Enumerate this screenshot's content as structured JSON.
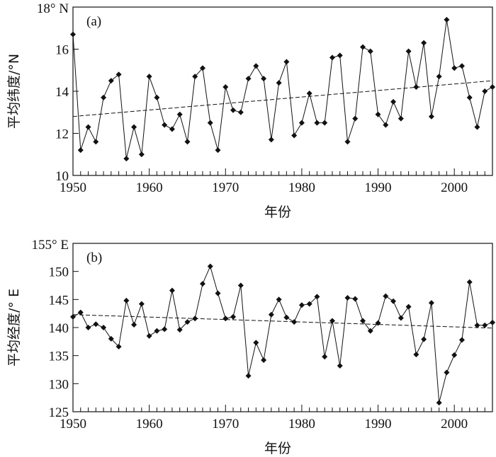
{
  "chart_data": [
    {
      "type": "line",
      "panel_label": "(a)",
      "xlabel": "年份",
      "ylabel": "平均纬度/°N",
      "top_tick_label": "18° N",
      "xlim": [
        1950,
        2005
      ],
      "ylim": [
        10,
        18
      ],
      "xticks": [
        1950,
        1960,
        1970,
        1980,
        1990,
        2000
      ],
      "yticks": [
        10,
        12,
        14,
        16
      ],
      "x": [
        1950,
        1951,
        1952,
        1953,
        1954,
        1955,
        1956,
        1957,
        1958,
        1959,
        1960,
        1961,
        1962,
        1963,
        1964,
        1965,
        1966,
        1967,
        1968,
        1969,
        1970,
        1971,
        1972,
        1973,
        1974,
        1975,
        1976,
        1977,
        1978,
        1979,
        1980,
        1981,
        1982,
        1983,
        1984,
        1985,
        1986,
        1987,
        1988,
        1989,
        1990,
        1991,
        1992,
        1993,
        1994,
        1995,
        1996,
        1997,
        1998,
        1999,
        2000,
        2001,
        2002,
        2003,
        2004,
        2005
      ],
      "series": [
        {
          "values": [
            16.7,
            11.2,
            12.3,
            11.6,
            13.7,
            14.5,
            14.8,
            10.8,
            12.3,
            11.0,
            14.7,
            13.7,
            12.4,
            12.2,
            12.9,
            11.6,
            14.7,
            15.1,
            12.5,
            11.2,
            14.2,
            13.1,
            13.0,
            14.6,
            15.2,
            14.6,
            11.7,
            14.4,
            15.4,
            11.9,
            12.5,
            13.9,
            12.5,
            12.5,
            15.6,
            15.7,
            11.6,
            12.7,
            16.1,
            15.9,
            12.9,
            12.4,
            13.5,
            12.7,
            15.9,
            14.2,
            16.3,
            12.8,
            14.7,
            17.4,
            15.1,
            15.2,
            13.7,
            12.3,
            14.0,
            14.2
          ]
        }
      ],
      "trend": {
        "x": [
          1950,
          2005
        ],
        "y": [
          12.8,
          14.5
        ]
      },
      "grid": false,
      "legend": "none"
    },
    {
      "type": "line",
      "panel_label": "(b)",
      "xlabel": "年份",
      "ylabel": "平均经度/° E",
      "top_tick_label": "155° E",
      "xlim": [
        1950,
        2005
      ],
      "ylim": [
        125,
        155
      ],
      "xticks": [
        1950,
        1960,
        1970,
        1980,
        1990,
        2000
      ],
      "yticks": [
        125,
        130,
        135,
        140,
        145,
        150
      ],
      "x": [
        1950,
        1951,
        1952,
        1953,
        1954,
        1955,
        1956,
        1957,
        1958,
        1959,
        1960,
        1961,
        1962,
        1963,
        1964,
        1965,
        1966,
        1967,
        1968,
        1969,
        1970,
        1971,
        1972,
        1973,
        1974,
        1975,
        1976,
        1977,
        1978,
        1979,
        1980,
        1981,
        1982,
        1983,
        1984,
        1985,
        1986,
        1987,
        1988,
        1989,
        1990,
        1991,
        1992,
        1993,
        1994,
        1995,
        1996,
        1997,
        1998,
        1999,
        2000,
        2001,
        2002,
        2003,
        2004,
        2005
      ],
      "series": [
        {
          "values": [
            141.9,
            142.7,
            140.0,
            140.6,
            140.0,
            138.0,
            136.6,
            144.8,
            140.5,
            144.2,
            138.5,
            139.4,
            139.7,
            146.6,
            139.6,
            141.0,
            141.6,
            147.8,
            150.9,
            146.1,
            141.6,
            141.9,
            147.5,
            131.4,
            137.3,
            134.2,
            142.3,
            145.0,
            141.8,
            141.0,
            144.0,
            144.2,
            145.5,
            134.8,
            141.2,
            133.2,
            145.3,
            145.1,
            141.2,
            139.4,
            140.8,
            145.6,
            144.7,
            141.7,
            143.7,
            135.2,
            137.9,
            144.4,
            126.6,
            132.0,
            135.1,
            137.8,
            148.1,
            140.4,
            140.4,
            140.9
          ]
        }
      ],
      "trend": {
        "x": [
          1950,
          2005
        ],
        "y": [
          142.3,
          139.9
        ]
      },
      "grid": false,
      "legend": "none"
    }
  ]
}
